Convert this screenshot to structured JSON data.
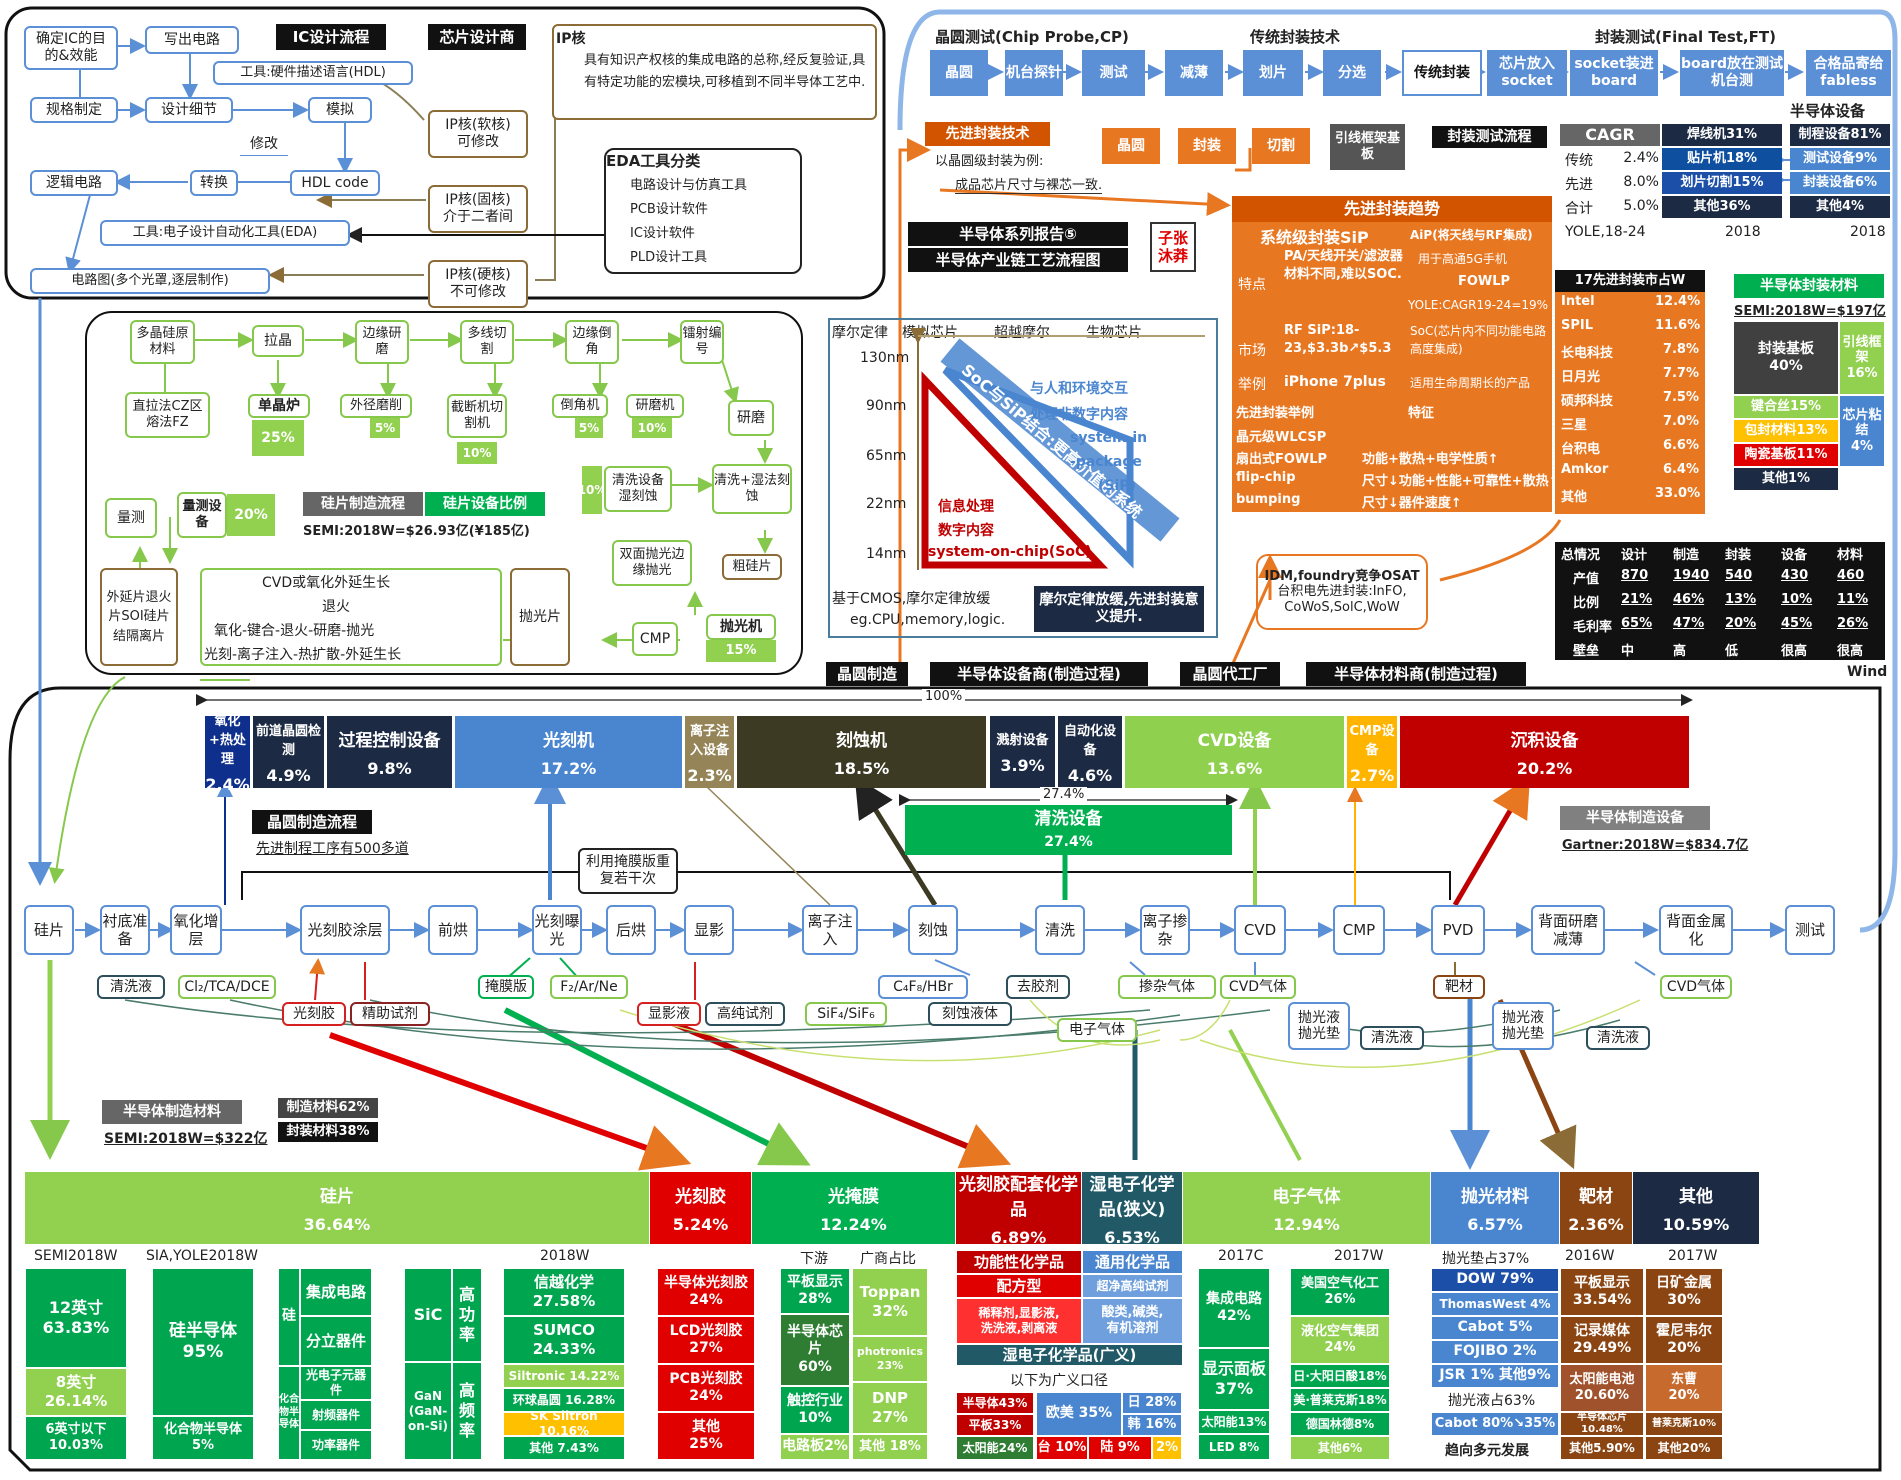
{
  "ic_design": {
    "title": "IC设计流程",
    "maker": "芯片设计商",
    "steps": [
      "确定IC的目的&效能",
      "写出电路",
      "工具:硬件描述语言(HDL)",
      "规格制定",
      "设计细节",
      "模拟",
      "修改",
      "逻辑电路",
      "转换",
      "HDL code",
      "工具:电子设计自动化工具(EDA)",
      "电路图(多个光罩,逐层制作)"
    ],
    "ip_soft": "IP核(软核)",
    "ip_soft_sub": "可修改",
    "ip_firm": "IP核(固核)",
    "ip_firm_sub": "介于二者间",
    "ip_hard": "IP核(硬核)",
    "ip_hard_sub": "不可修改",
    "ip_title": "IP核",
    "ip_desc": "具有知识产权核的集成电路的总称,经反复验证,具有特定功能的宏模块,可移植到不同半导体工艺中.",
    "eda_title": "EDA工具分类",
    "eda_items": [
      "电路设计与仿真工具",
      "PCB设计软件",
      "IC设计软件",
      "PLD设计工具"
    ]
  },
  "wafer": {
    "steps": [
      "多晶硅原材料",
      "拉晶",
      "边缘研磨",
      "多线切割",
      "边缘倒角",
      "镭射编号",
      "直拉法CZ区熔法FZ",
      "单晶炉",
      "外径磨削",
      "截断机切割机",
      "倒角机",
      "研磨机",
      "研磨",
      "清洗设备湿刻蚀",
      "清洗+湿法刻蚀",
      "量测",
      "量测设备",
      "双面抛光边缘抛光",
      "粗硅片",
      "外延片退火片SOI硅片结隔离片",
      "CVD或氧化外延生长",
      "退火",
      "氧化-键合-退火-研磨-抛光",
      "光刻-离子注入-热扩散-外延生长",
      "抛光片",
      "CMP",
      "抛光机"
    ],
    "pct": {
      "crystal": "25%",
      "grind": "5%",
      "cut": "10%",
      "chamfer": "5%",
      "polish_m": "10%",
      "clean": "10%",
      "measure": "20%",
      "polisher": "15%"
    },
    "flow_title": "硅片制造流程",
    "ratio_title": "硅片设备比例",
    "market": "SEMI:2018W=$26.93亿(¥185亿)"
  },
  "packaging": {
    "cp_title": "晶圆测试(Chip Probe,CP)",
    "trad_title": "传统封装技术",
    "ft_title": "封装测试(Final Test,FT)",
    "flow": [
      "晶圆",
      "机台探针",
      "测试",
      "减薄",
      "划片",
      "分选",
      "传统封装",
      "芯片放入socket",
      "socket装进board",
      "board放在测试机台测",
      "合格品寄给fabless"
    ],
    "adv_title": "先进封装技术",
    "adv_flow": [
      "晶圆",
      "封装",
      "切割"
    ],
    "adv_note1": "以晶圆级封装为例:",
    "adv_note2": "成品芯片尺寸与裸芯一致.",
    "leadframe": "引线框架基板",
    "ptest_title": "封装测试流程",
    "cagr_title": "CAGR",
    "cagr_rows": [
      [
        "传统",
        "2.4%"
      ],
      [
        "先进",
        "8.0%"
      ],
      [
        "合计",
        "5.0%"
      ]
    ],
    "cagr_src": "YOLE,18-24",
    "equip_title": "半导体设备",
    "equip_left": [
      "焊线机31%",
      "贴片机18%",
      "划片切割15%",
      "其他36%"
    ],
    "equip_right": [
      "制程设备81%",
      "测试设备9%",
      "封装设备6%",
      "其他4%"
    ],
    "equip_year": "2018"
  },
  "series": {
    "line1": "半导体系列报告⑤",
    "line2": "半导体产业链工艺流程图",
    "author": "子张沐莽"
  },
  "trend": {
    "title": "先进封装趋势",
    "sip": "系统级封装SiP",
    "aip": "AiP(将天线与RF集成)",
    "aip2": "用于高通5G手机",
    "fowlp": "FOWLP",
    "fowlp2": "YOLE:CAGR19-24=19%",
    "soc_note": "SoC(芯片内不同功能电路高度集成)",
    "use": "适用生命周期长的产品",
    "feat_lbl": "特点",
    "feat": "PA/天线开关/滤波器材料不同,难以SOC.",
    "mkt_lbl": "市场",
    "mkt": "RF SiP:18-23,$3.3b↗$5.3",
    "ex_lbl": "举例",
    "ex": "iPhone 7plus",
    "adv_ex_title": "先进封装举例",
    "adv_ex_feat": "特征",
    "adv_ex": [
      [
        "晶元级WLCSP",
        ""
      ],
      [
        "扇出式FOWLP",
        "功能+散热+电学性质↑"
      ],
      [
        "flip-chip",
        "尺寸↓功能+性能+可靠性+散热↑"
      ],
      [
        "bumping",
        "尺寸↓器件速度↑"
      ]
    ],
    "osat_title": "17先进封装市占W",
    "osat": [
      [
        "Intel",
        "12.4%"
      ],
      [
        "SPIL",
        "11.6%"
      ],
      [
        "长电科技",
        "7.8%"
      ],
      [
        "日月光",
        "7.7%"
      ],
      [
        "硕邦科技",
        "7.5%"
      ],
      [
        "三星",
        "7.0%"
      ],
      [
        "台积电",
        "6.6%"
      ],
      [
        "Amkor",
        "6.4%"
      ],
      [
        "其他",
        "33.0%"
      ]
    ],
    "idm": "IDM,foundry竞争OSAT",
    "idm2": "台积电先进封装:InFO,",
    "idm3": "CoWoS,SolC,WoW"
  },
  "moore": {
    "axis_title": "摩尔定律",
    "labels": [
      "模拟芯片",
      "超越摩尔",
      "生物芯片"
    ],
    "nodes": [
      "130nm",
      "90nm",
      "65nm",
      "22nm",
      "14nm"
    ],
    "sip_text": "SoC与SiP结合:更高价值的系统",
    "blue_text1": "与人和环境交互",
    "blue_text2": "处理非数字内容",
    "blue_text3": "system-in",
    "blue_text4": "-package",
    "blue_text5": "(SiP)",
    "red_text1": "信息处理",
    "red_text2": "数字内容",
    "red_text3": "system-on-chip(SoC)",
    "bottom1": "基于CMOS,摩尔定律放缓",
    "bottom2": "eg.CPU,memory,logic.",
    "bottom_box": "摩尔定律放缓,先进封装意义提升."
  },
  "pkg_material": {
    "title": "半导体封装材料",
    "market": "SEMI:2018W=$197亿",
    "items": [
      [
        "封装基板",
        "40%"
      ],
      [
        "引线框架",
        "16%"
      ],
      [
        "键合丝15%",
        ""
      ],
      [
        "包封材料13%",
        ""
      ],
      [
        "陶瓷基板11%",
        ""
      ],
      [
        "芯片粘结",
        "4%"
      ],
      [
        "其他1%",
        ""
      ]
    ]
  },
  "summary": {
    "header": [
      "总情况",
      "设计",
      "制造",
      "封装",
      "设备",
      "材料"
    ],
    "rows": [
      [
        "产值",
        "870",
        "1940",
        "540",
        "430",
        "460"
      ],
      [
        "比例",
        "21%",
        "46%",
        "13%",
        "10%",
        "11%"
      ],
      [
        "毛利率",
        "65%",
        "47%",
        "20%",
        "45%",
        "26%"
      ],
      [
        "壁垒",
        "中",
        "高",
        "低",
        "很高",
        "很高"
      ]
    ],
    "src": "Wind"
  },
  "roles": [
    "晶圆制造",
    "半导体设备商(制造过程)",
    "晶圆代工厂",
    "半导体材料商(制造过程)"
  ],
  "equipment": {
    "total": "100%",
    "bars": [
      {
        "name": "氧化+热处理",
        "value": "2.4%",
        "color": "#0f2f8c"
      },
      {
        "name": "前道晶圆检测",
        "value": "4.9%",
        "color": "#1c2a44"
      },
      {
        "name": "过程控制设备",
        "value": "9.8%",
        "color": "#1c2a44"
      },
      {
        "name": "光刻机",
        "value": "17.2%",
        "color": "#4a86d0"
      },
      {
        "name": "离子注入设备",
        "value": "2.3%",
        "color": "#948458"
      },
      {
        "name": "刻蚀机",
        "value": "18.5%",
        "color": "#3d3a24"
      },
      {
        "name": "溅射设备",
        "value": "3.9%",
        "color": "#1c2a44"
      },
      {
        "name": "自动化设备",
        "value": "4.6%",
        "color": "#1c2a44"
      },
      {
        "name": "CVD设备",
        "value": "13.6%",
        "color": "#8fd14f"
      },
      {
        "name": "CMP设备",
        "value": "2.7%",
        "color": "#ffb400"
      },
      {
        "name": "沉积设备",
        "value": "20.2%",
        "color": "#c00000"
      }
    ],
    "clean_span": "27.4%",
    "clean_name": "清洗设备",
    "clean_value": "27.4%",
    "title": "半导体制造设备",
    "market": "Gartner:2018W=$834.7亿"
  },
  "fab": {
    "title": "晶圆制造流程",
    "note": "先进制程工序有500多道",
    "mask_note": "利用掩膜版重复若干次",
    "steps": [
      "硅片",
      "衬底准备",
      "氧化增层",
      "光刻胶涂层",
      "前烘",
      "光刻曝光",
      "后烘",
      "显影",
      "离子注入",
      "刻蚀",
      "清洗",
      "离子掺杂",
      "CVD",
      "CMP",
      "PVD",
      "背面研磨减薄",
      "背面金属化",
      "测试"
    ],
    "materials": [
      "清洗液",
      "Cl₂/TCA/DCE",
      "光刻胶",
      "精助试剂",
      "掩膜版",
      "F₂/Ar/Ne",
      "显影液",
      "高纯试剂",
      "SiF₄/SiF₆",
      "C₄F₈/HBr",
      "刻蚀液体",
      "去胶剂",
      "电子气体",
      "掺杂气体",
      "CVD气体",
      "抛光液抛光垫",
      "清洗液",
      "靶材",
      "抛光液抛光垫",
      "清洗液",
      "CVD气体"
    ]
  },
  "materials": {
    "title": "半导体制造材料",
    "market": "SEMI:2018W=$322亿",
    "mfg": "制造材料62%",
    "pkg": "封装材料38%",
    "bars": [
      {
        "name": "硅片",
        "value": "36.64%",
        "color": "#92d050"
      },
      {
        "name": "光刻胶",
        "value": "5.24%",
        "color": "#e00000"
      },
      {
        "name": "光掩膜",
        "value": "12.24%",
        "color": "#00b050"
      },
      {
        "name": "光刻胶配套化学品",
        "value": "6.89%",
        "color": "#c00000"
      },
      {
        "name": "湿电子化学品(狭义)",
        "value": "6.53%",
        "color": "#215967"
      },
      {
        "name": "电子气体",
        "value": "12.94%",
        "color": "#92d050"
      },
      {
        "name": "抛光材料",
        "value": "6.57%",
        "color": "#4a86d0"
      },
      {
        "name": "靶材",
        "value": "2.36%",
        "color": "#8b4513"
      },
      {
        "name": "其他",
        "value": "10.59%",
        "color": "#1c2a44"
      }
    ],
    "src": [
      "SEMI2018W",
      "SIA,YOLE2018W",
      "2018W",
      "下游",
      "广商占比",
      "2017C",
      "2017W",
      "抛光垫占37%",
      "2016W",
      "2017W"
    ],
    "si_size": [
      [
        "12英寸",
        "63.83%"
      ],
      [
        "8英寸",
        "26.14%"
      ],
      [
        "6英寸以下",
        "10.03%"
      ]
    ],
    "si_type": [
      [
        "硅半导体",
        "95%"
      ],
      [
        "化合物半导体",
        "5%"
      ]
    ],
    "si_use": [
      "集成电路",
      "分立器件",
      "光电子元器件",
      "射频器件",
      "功率器件"
    ],
    "si_use_lbl": [
      "硅",
      "化合物半导体"
    ],
    "sic": "SiC",
    "sic_p": "高功率",
    "gan": "GaN (GaN-on-Si)",
    "gan_p": "高频率",
    "si_mkt": [
      [
        "信越化学",
        "27.58%"
      ],
      [
        "SUMCO",
        "24.33%"
      ],
      [
        "Siltronic 14.22%",
        ""
      ],
      [
        "环球晶圆 16.28%",
        ""
      ],
      [
        "SK Siltron 10.16%",
        ""
      ],
      [
        "其他 7.43%",
        ""
      ]
    ],
    "resist": [
      [
        "半导体光刻胶",
        "24%"
      ],
      [
        "LCD光刻胶",
        "27%"
      ],
      [
        "PCB光刻胶",
        "24%"
      ],
      [
        "其他",
        "25%"
      ]
    ],
    "mask_down": [
      [
        "平板显示",
        "28%"
      ],
      [
        "半导体芯片",
        "60%"
      ],
      [
        "触控行业",
        "10%"
      ],
      [
        "电路板2%",
        ""
      ]
    ],
    "mask_mkt": [
      [
        "Toppan",
        "32%"
      ],
      [
        "photronics",
        "23%"
      ],
      [
        "DNP",
        "27%"
      ],
      [
        "其他 18%",
        ""
      ]
    ],
    "chem": [
      [
        "功能性化学品",
        ""
      ],
      [
        "配方型",
        ""
      ],
      [
        "稀释剂,显影液,",
        "洗洗液,剥离液"
      ],
      [
        "通用化学品",
        ""
      ],
      [
        "超净高纯试剂",
        ""
      ],
      [
        "酸类,碱类,",
        "有机溶剂"
      ]
    ],
    "chem_wide": "湿电子化学品(广义)",
    "chem_note": "以下为广义口径",
    "chem_use": [
      [
        "半导体43%"
      ],
      [
        "平板33%"
      ],
      [
        "太阳能24%"
      ]
    ],
    "chem_mkt": [
      [
        "欧美 35%"
      ],
      [
        "日 28%"
      ],
      [
        "韩 16%"
      ],
      [
        "台 10%"
      ],
      [
        "陆 9%"
      ],
      [
        "2%"
      ]
    ],
    "gas_use": [
      [
        "集成电路",
        "42%"
      ],
      [
        "显示面板",
        "37%"
      ],
      [
        "太阳能13%",
        ""
      ],
      [
        "LED 8%",
        ""
      ]
    ],
    "gas_mkt": [
      [
        "美国空气化工",
        "26%"
      ],
      [
        "液化空气集团",
        "24%"
      ],
      [
        "日·大阳日酸18%",
        ""
      ],
      [
        "美·普莱克斯18%",
        ""
      ],
      [
        "德国林德8%",
        ""
      ],
      [
        "其他6%",
        ""
      ]
    ],
    "cmp": [
      [
        "DOW 79%"
      ],
      [
        "ThomasWest 4%"
      ],
      [
        "Cabot 5%"
      ],
      [
        "FOJIBO 2%"
      ],
      [
        "JSR 1%  其他9%"
      ],
      [
        "抛光液占63%"
      ],
      [
        "Cabot 80%↘35%"
      ],
      [
        "趋向多元发展"
      ]
    ],
    "target": [
      [
        "平板显示",
        "33.54%"
      ],
      [
        "记录媒体",
        "29.49%"
      ],
      [
        "太阳能电池",
        "20.60%"
      ],
      [
        "半导体芯片10.48%",
        ""
      ],
      [
        "其他5.90%",
        ""
      ]
    ],
    "other": [
      [
        "日矿金属",
        "30%"
      ],
      [
        "霍尼韦尔",
        "20%"
      ],
      [
        "东曹",
        "20%"
      ],
      [
        "普莱克斯10%",
        ""
      ],
      [
        "其他20%",
        ""
      ]
    ]
  }
}
